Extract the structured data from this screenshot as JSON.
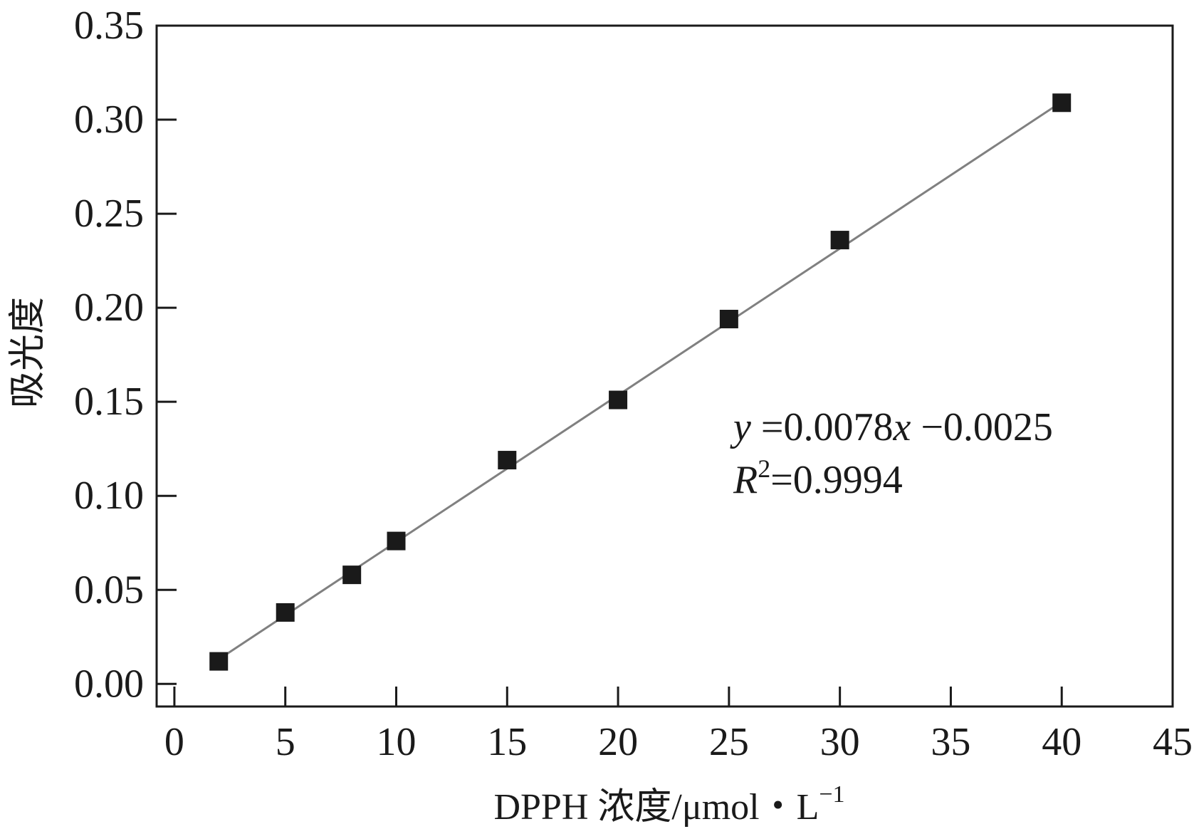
{
  "chart_data": {
    "type": "scatter",
    "title": "",
    "xlabel": "DPPH 浓度/μmol・L⁻¹",
    "xlabel_parts": {
      "main": "DPPH 浓度/μmol・L",
      "sup": "−1"
    },
    "ylabel": "吸光度",
    "xlim": [
      -0.8,
      45
    ],
    "ylim": [
      -0.012,
      0.35
    ],
    "xticks": [
      0,
      5,
      10,
      15,
      20,
      25,
      30,
      35,
      40,
      45
    ],
    "yticks": [
      0.0,
      0.05,
      0.1,
      0.15,
      0.2,
      0.25,
      0.3,
      0.35
    ],
    "ytick_labels": [
      "0.00",
      "0.05",
      "0.10",
      "0.15",
      "0.20",
      "0.25",
      "0.30",
      "0.35"
    ],
    "grid": false,
    "series": [
      {
        "x": [
          2,
          5,
          8,
          10,
          15,
          20,
          25,
          30,
          40
        ],
        "y": [
          0.012,
          0.038,
          0.058,
          0.076,
          0.119,
          0.151,
          0.194,
          0.236,
          0.309
        ],
        "marker": "square",
        "color": "#1a1a1a"
      }
    ],
    "fit_line": {
      "slope": 0.0078,
      "intercept": -0.0025,
      "x_range": [
        2,
        40
      ],
      "color": "#808080"
    },
    "annotation": {
      "equation": {
        "y": "y",
        "eq1": " =0.0078",
        "x": "x",
        "eq2": " −0.0025"
      },
      "r2": {
        "R": "R",
        "sup": "2",
        "value": "=0.9994"
      }
    }
  }
}
